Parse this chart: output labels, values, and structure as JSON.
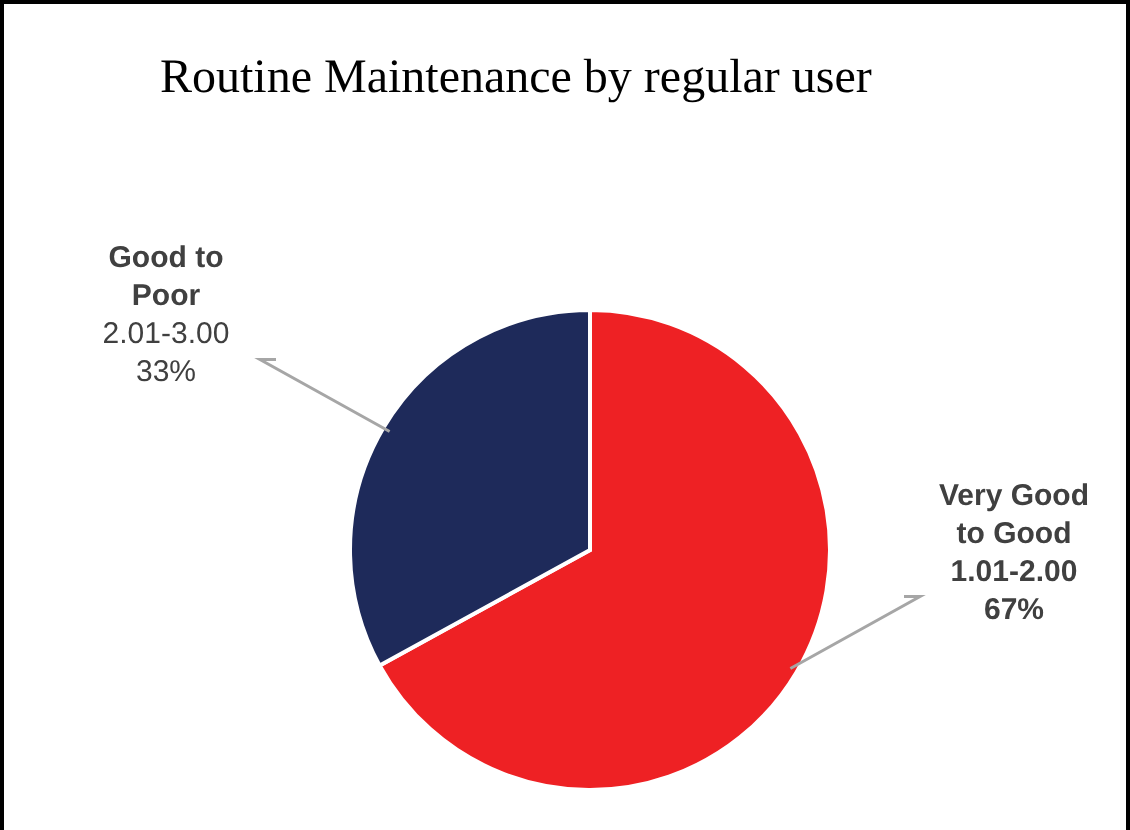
{
  "chart_data": {
    "type": "pie",
    "title": "Routine Maintenance by regular user",
    "categories": [
      "Very Good to Good",
      "Good to Poor"
    ],
    "values": [
      67,
      33
    ],
    "colors": [
      "#ee2124",
      "#1e2a5a"
    ],
    "value_labels": [
      "67%",
      "33%"
    ],
    "legend": false,
    "annotations": [
      {
        "text": "1.01-2.00",
        "x": "Very Good to Good"
      },
      {
        "text": "2.01-3.00",
        "x": "Good to Poor"
      }
    ]
  }
}
